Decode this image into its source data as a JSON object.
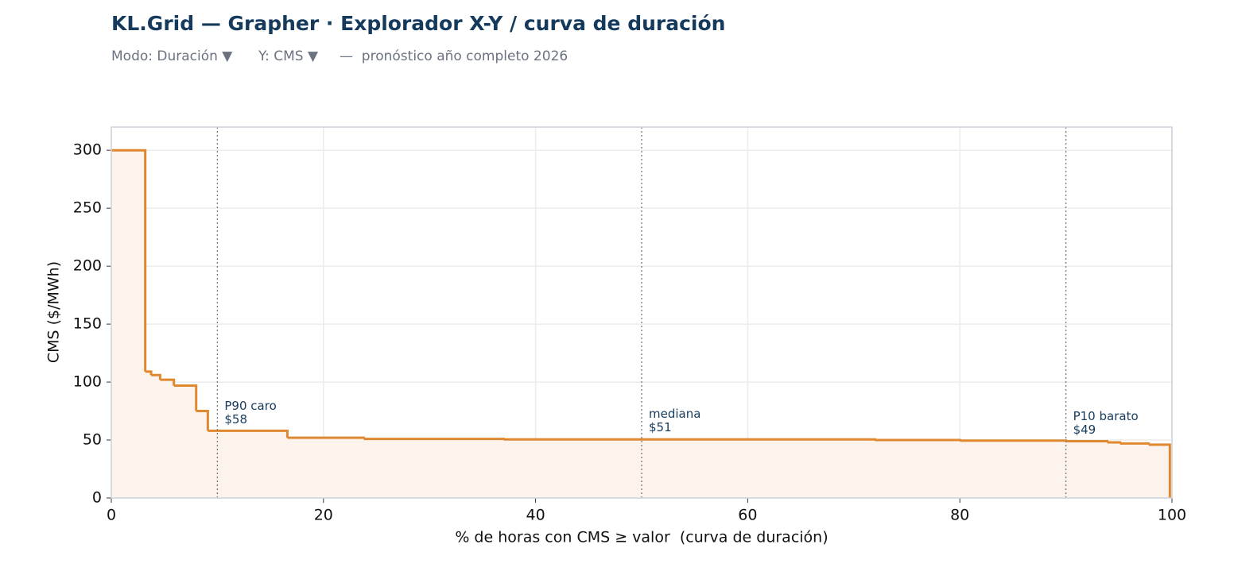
{
  "header": {
    "title": "KL.Grid — Grapher · Explorador X-Y / curva de duración",
    "controls": [
      "Modo: Duración ▼",
      "Y: CMS ▼"
    ],
    "note": "—  pronóstico año completo 2026"
  },
  "chart_data": {
    "type": "step",
    "x_label": "% de horas con CMS ≥ valor  (curva de duración)",
    "y_label": "CMS ($/MWh)",
    "x": [
      0,
      3.2,
      3.75,
      4.6,
      5.9,
      8.0,
      9.1,
      16.6,
      23.8,
      37,
      72,
      80,
      90,
      93.9,
      95.1,
      97.8,
      99.8
    ],
    "y": [
      300,
      109,
      106,
      102,
      97,
      75,
      58,
      52,
      51,
      50.5,
      50,
      49.5,
      49,
      48,
      47,
      46,
      0
    ],
    "color": "#e0882f",
    "fill_color": "#fbf3ec",
    "xlim": [
      0,
      100
    ],
    "xticks": [
      0,
      20,
      40,
      60,
      80,
      100
    ],
    "ylim": [
      0,
      320
    ],
    "yticks": [
      0,
      50,
      100,
      150,
      200,
      250,
      300
    ],
    "grid": true,
    "annotations": [
      {
        "x": 10,
        "label": "P90 caro",
        "value": 58,
        "value_label": "$58"
      },
      {
        "x": 50,
        "label": "mediana",
        "value": 51,
        "value_label": "$51"
      },
      {
        "x": 90,
        "label": "P10 barato",
        "value": 49,
        "value_label": "$49"
      }
    ]
  }
}
